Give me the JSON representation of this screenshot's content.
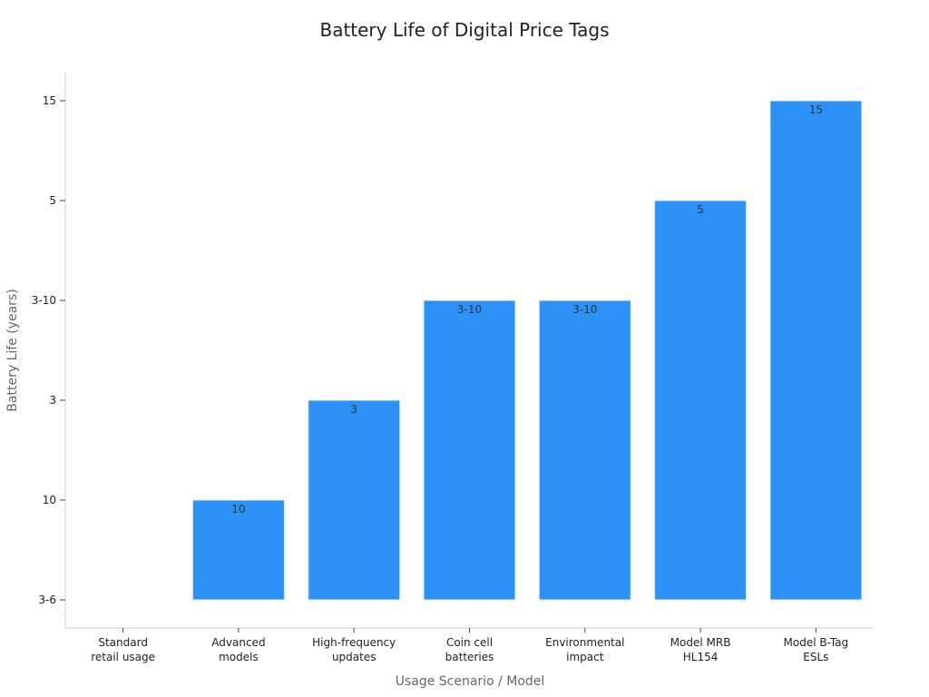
{
  "chart_data": {
    "type": "bar",
    "title": "Battery Life of Digital Price Tags",
    "xlabel": "Usage Scenario / Model",
    "ylabel": "Battery Life (years)",
    "y_axis_type": "categorical",
    "y_categories": [
      "3-6",
      "10",
      "3",
      "3-10",
      "5",
      "15"
    ],
    "categories": [
      [
        "Standard",
        "retail usage"
      ],
      [
        "Advanced",
        "models"
      ],
      [
        "High-frequency",
        "updates"
      ],
      [
        "Coin cell",
        "batteries"
      ],
      [
        "Environmental",
        "impact"
      ],
      [
        "Model MRB",
        "HL154"
      ],
      [
        "Model B-Tag",
        "ESLs"
      ]
    ],
    "values": [
      "3-6",
      "10",
      "3",
      "3-10",
      "3-10",
      "5",
      "15"
    ],
    "bar_color": "#2d92f7",
    "grid": false,
    "legend": "none"
  }
}
